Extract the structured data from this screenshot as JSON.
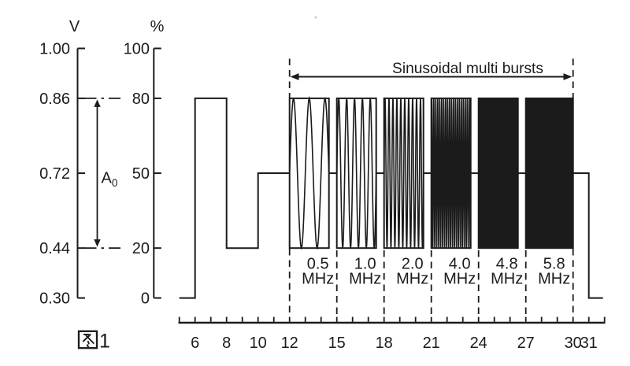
{
  "figure": {
    "caption": "图1",
    "caption_number": "1"
  },
  "axes": {
    "voltage": {
      "title": "V",
      "ticks": [
        [
          "1.00",
          100
        ],
        [
          "0.86",
          80
        ],
        [
          "0.72",
          50
        ],
        [
          "0.44",
          20
        ],
        [
          "0.30",
          0
        ]
      ]
    },
    "percent": {
      "title": "%",
      "ticks": [
        [
          "100",
          100
        ],
        [
          "80",
          80
        ],
        [
          "50",
          50
        ],
        [
          "20",
          20
        ],
        [
          "0",
          0
        ]
      ]
    },
    "amplitude_marker": {
      "label": "A",
      "subscript": "0",
      "from_pct": 20,
      "to_pct": 80
    }
  },
  "chart_data": {
    "type": "line",
    "title": "Sinusoidal multi bursts",
    "x_unit_labels": [
      6,
      8,
      10,
      12,
      15,
      18,
      21,
      24,
      27,
      30,
      31
    ],
    "x_tick_min": 5,
    "x_tick_max": 32,
    "y_axis_percent_ticks": [
      0,
      20,
      50,
      80,
      100
    ],
    "y_axis_volt_ticks": [
      0.3,
      0.44,
      0.72,
      0.86,
      1.0
    ],
    "baseline_steps": [
      {
        "from": 5,
        "to": 6,
        "level_pct": 0
      },
      {
        "from": 6,
        "to": 8,
        "level_pct": 80
      },
      {
        "from": 8,
        "to": 10,
        "level_pct": 20
      },
      {
        "from": 10,
        "to": 12,
        "level_pct": 50
      },
      {
        "from": 30,
        "to": 31,
        "level_pct": 50
      },
      {
        "from": 31,
        "to": 31.9,
        "level_pct": 0
      }
    ],
    "pedestal_pct": 50,
    "burst_band_pct": [
      20,
      80
    ],
    "bursts": [
      {
        "label": "0.5",
        "unit": "MHz",
        "from": 12,
        "to": 14.5,
        "cycles": 2.5,
        "render": "wave"
      },
      {
        "label": "1.0",
        "unit": "MHz",
        "from": 15,
        "to": 17.5,
        "cycles": 5,
        "render": "wave"
      },
      {
        "label": "2.0",
        "unit": "MHz",
        "from": 18,
        "to": 20.5,
        "cycles": 10,
        "render": "wave"
      },
      {
        "label": "4.0",
        "unit": "MHz",
        "from": 21,
        "to": 23.5,
        "cycles": 20,
        "render": "wave"
      },
      {
        "label": "4.8",
        "unit": "MHz",
        "from": 24,
        "to": 26.5,
        "render": "solid"
      },
      {
        "label": "5.8",
        "unit": "MHz",
        "from": 27,
        "to": 30,
        "render": "solid"
      }
    ],
    "dashed_markers": [
      12,
      15,
      18,
      21,
      24,
      27,
      30
    ],
    "legend": null,
    "grid": false,
    "colors": {
      "ink": "#1b1b1b",
      "background": "#ffffff"
    }
  }
}
